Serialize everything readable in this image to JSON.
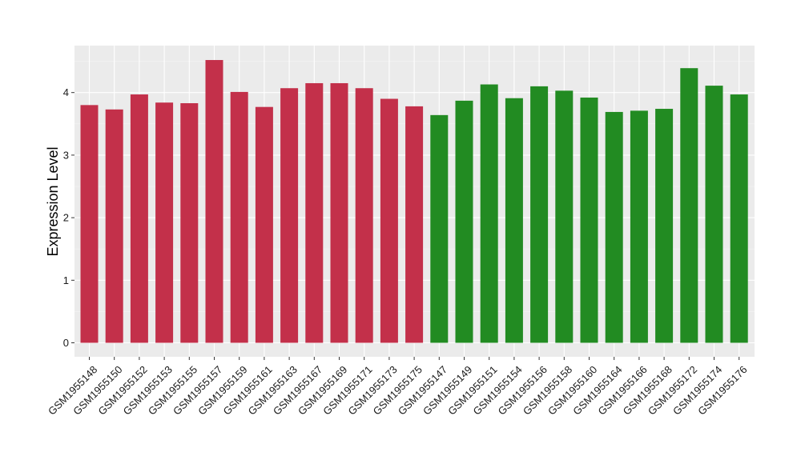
{
  "chart_data": {
    "type": "bar",
    "xlabel": "",
    "ylabel": "Expression Level",
    "ylim": [
      -0.15,
      4.75
    ],
    "yticks": [
      0,
      1,
      2,
      3,
      4
    ],
    "grid": true,
    "legend": "none",
    "panel_background": "#EBEBEB",
    "grid_color": "#FFFFFF",
    "categories": [
      "GSM1955148",
      "GSM1955150",
      "GSM1955152",
      "GSM1955153",
      "GSM1955155",
      "GSM1955157",
      "GSM1955159",
      "GSM1955161",
      "GSM1955163",
      "GSM1955167",
      "GSM1955169",
      "GSM1955171",
      "GSM1955173",
      "GSM1955175",
      "GSM1955147",
      "GSM1955149",
      "GSM1955151",
      "GSM1955154",
      "GSM1955156",
      "GSM1955158",
      "GSM1955160",
      "GSM1955164",
      "GSM1955166",
      "GSM1955168",
      "GSM1955172",
      "GSM1955174",
      "GSM1955176"
    ],
    "values": [
      3.8,
      3.73,
      3.97,
      3.84,
      3.83,
      4.52,
      4.01,
      3.77,
      4.07,
      4.15,
      4.15,
      4.07,
      3.9,
      3.78,
      3.64,
      3.87,
      4.13,
      3.91,
      4.1,
      4.03,
      3.92,
      3.69,
      3.71,
      3.74,
      4.39,
      4.11,
      3.97
    ],
    "bar_colors": [
      "#C3304A",
      "#C3304A",
      "#C3304A",
      "#C3304A",
      "#C3304A",
      "#C3304A",
      "#C3304A",
      "#C3304A",
      "#C3304A",
      "#C3304A",
      "#C3304A",
      "#C3304A",
      "#C3304A",
      "#C3304A",
      "#228B22",
      "#228B22",
      "#228B22",
      "#228B22",
      "#228B22",
      "#228B22",
      "#228B22",
      "#228B22",
      "#228B22",
      "#228B22",
      "#228B22",
      "#228B22",
      "#228B22"
    ]
  }
}
